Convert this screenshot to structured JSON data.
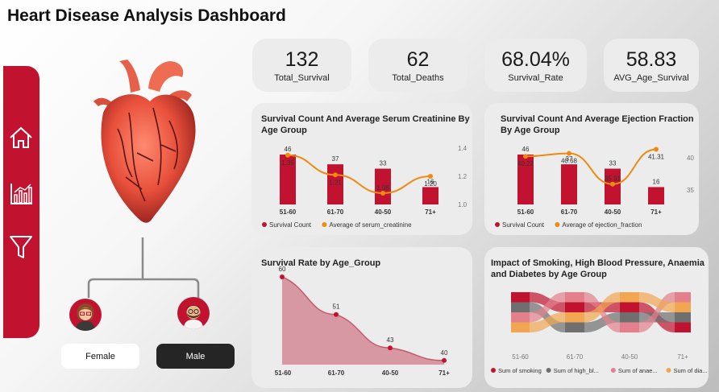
{
  "header": {
    "title": "Heart Disease Analysis Dashboard"
  },
  "sidebar": {
    "icons": [
      "home-icon",
      "bar-chart-icon",
      "filter-icon"
    ]
  },
  "filters": {
    "female_label": "Female",
    "male_label": "Male"
  },
  "kpis": [
    {
      "value": "132",
      "label": "Total_Survival"
    },
    {
      "value": "62",
      "label": "Total_Deaths"
    },
    {
      "value": "68.04%",
      "label": "Survival_Rate"
    },
    {
      "value": "58.83",
      "label": "AVG_Age_Survival"
    }
  ],
  "colors": {
    "accent": "#c1132f",
    "orange": "#ee8a12",
    "area": "#d58a96",
    "grey": "#6f6f6f",
    "pink": "#e3808c",
    "light_orange": "#f2a651"
  },
  "chart_data": [
    {
      "type": "bar",
      "title": "Survival Count And Average Serum Creatinine By Age Group",
      "categories": [
        "51-60",
        "61-70",
        "40-50",
        "71+"
      ],
      "series": [
        {
          "name": "Survival Count",
          "values": [
            46,
            37,
            33,
            16
          ],
          "labels": [
            "46",
            "37",
            "33",
            "16"
          ]
        },
        {
          "name": "Average of serum_creatinine",
          "type": "line",
          "values": [
            1.35,
            1.21,
            1.08,
            1.2
          ],
          "labels": [
            "1.35",
            "1.21",
            "1.08",
            "1.20"
          ]
        }
      ],
      "y2_ticks": [
        "1.4",
        "1.2",
        "1.0"
      ],
      "y2lim": [
        1.0,
        1.4
      ],
      "ylim": [
        0,
        46
      ],
      "legend": "bottom"
    },
    {
      "type": "bar",
      "title": "Survival Count And Average Ejection Fraction By Age Group",
      "categories": [
        "51-60",
        "61-70",
        "40-50",
        "71+"
      ],
      "series": [
        {
          "name": "Survival Count",
          "values": [
            46,
            37,
            33,
            16
          ],
          "labels": [
            "46",
            "37",
            "33",
            "16"
          ]
        },
        {
          "name": "Average of ejection_fraction",
          "type": "line",
          "values": [
            40.22,
            40.68,
            35.91,
            41.31
          ],
          "labels": [
            "40.22",
            "40.68",
            "35.91",
            "41.31"
          ]
        }
      ],
      "y2_ticks": [
        "40",
        "35"
      ],
      "y2lim": [
        35,
        40
      ],
      "ylim": [
        0,
        46
      ],
      "legend": "bottom"
    },
    {
      "type": "area",
      "title": "Survival Rate by Age_Group",
      "categories": [
        "51-60",
        "61-70",
        "40-50",
        "71+"
      ],
      "values": [
        60,
        51,
        43,
        40
      ],
      "labels": [
        "60",
        "51",
        "43",
        "40"
      ],
      "ylim": [
        40,
        60
      ]
    },
    {
      "type": "ribbon",
      "title": "Impact of Smoking, High Blood Pressure, Anaemia and Diabetes by Age Group",
      "categories": [
        "51-60",
        "61-70",
        "40-50",
        "71+"
      ],
      "series": [
        {
          "name": "Sum of smoking",
          "legend": "Sum of smoking",
          "color": "#c1132f"
        },
        {
          "name": "Sum of high_blood_pressure",
          "legend": "Sum of high_bl...",
          "color": "#6f6f6f"
        },
        {
          "name": "Sum of anaemia",
          "legend": "Sum of anae...",
          "color": "#e3808c"
        },
        {
          "name": "Sum of diabetes",
          "legend": "Sum of dia...",
          "color": "#f2a651"
        }
      ],
      "legend": "bottom"
    }
  ]
}
